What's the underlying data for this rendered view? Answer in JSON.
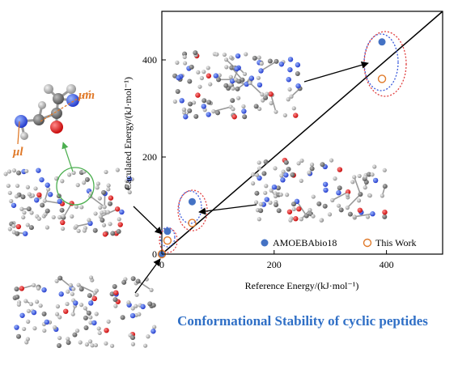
{
  "chart_data": {
    "type": "scatter",
    "title": "Conformational Stability of cyclic peptides",
    "xlabel": "Reference Energy/(kJ·mol⁻¹)",
    "ylabel": "Caculated Energy/(kJ·mol⁻¹)",
    "xlim": [
      0,
      500
    ],
    "ylim": [
      0,
      500
    ],
    "xticks": [
      "0",
      "200",
      "400"
    ],
    "yticks": [
      "0",
      "200",
      "400"
    ],
    "grid": false,
    "legend_position": "bottom-right",
    "diagonal": true,
    "series": [
      {
        "name": "AMOEBAbio18",
        "marker": "filled-circle",
        "color": "#4472c4",
        "points": [
          [
            0,
            0
          ],
          [
            10,
            47
          ],
          [
            54,
            108
          ],
          [
            392,
            437
          ]
        ]
      },
      {
        "name": "This Work",
        "marker": "open-circle",
        "color": "#e07a2a",
        "points": [
          [
            0,
            0
          ],
          [
            10,
            28
          ],
          [
            54,
            64
          ],
          [
            392,
            361
          ]
        ]
      }
    ]
  },
  "labels": {
    "mu_m": "μm",
    "mu_l": "μl"
  },
  "colors": {
    "accent": "#2f6fc6",
    "amoeba": "#4472c4",
    "thiswork": "#e07a2a",
    "highlight_ellipse_blue": "#3b5bdb",
    "highlight_ellipse_red": "#e04040",
    "green": "#4caf50"
  }
}
